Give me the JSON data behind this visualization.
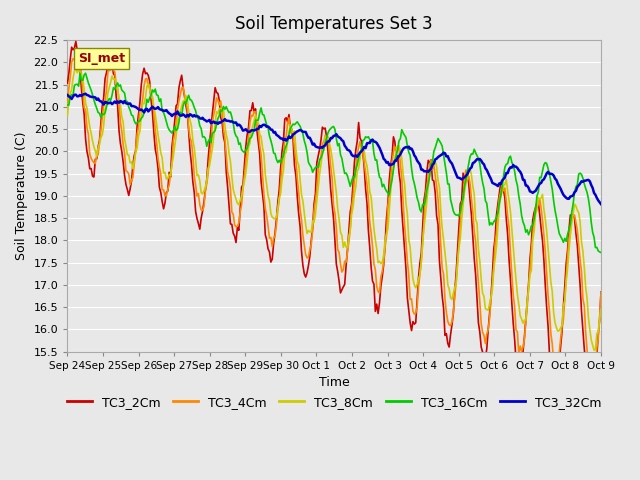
{
  "title": "Soil Temperatures Set 3",
  "xlabel": "Time",
  "ylabel": "Soil Temperature (C)",
  "ylim": [
    15.5,
    22.5
  ],
  "yticks": [
    15.5,
    16.0,
    16.5,
    17.0,
    17.5,
    18.0,
    18.5,
    19.0,
    19.5,
    20.0,
    20.5,
    21.0,
    21.5,
    22.0,
    22.5
  ],
  "line_colors": {
    "TC3_2Cm": "#cc0000",
    "TC3_4Cm": "#ff8800",
    "TC3_8Cm": "#cccc00",
    "TC3_16Cm": "#00cc00",
    "TC3_32Cm": "#0000cc"
  },
  "legend_label": "SI_met",
  "bg_color": "#e8e8e8",
  "plot_bg_color": "#e8e8e8",
  "xtick_labels": [
    "Sep 24",
    "Sep 25",
    "Sep 26",
    "Sep 27",
    "Sep 28",
    "Sep 29",
    "Sep 30",
    "Oct 1",
    "Oct 2",
    "Oct 3",
    "Oct 4",
    "Oct 5",
    "Oct 6",
    "Oct 7",
    "Oct 8",
    "Oct 9"
  ],
  "n_points": 384
}
